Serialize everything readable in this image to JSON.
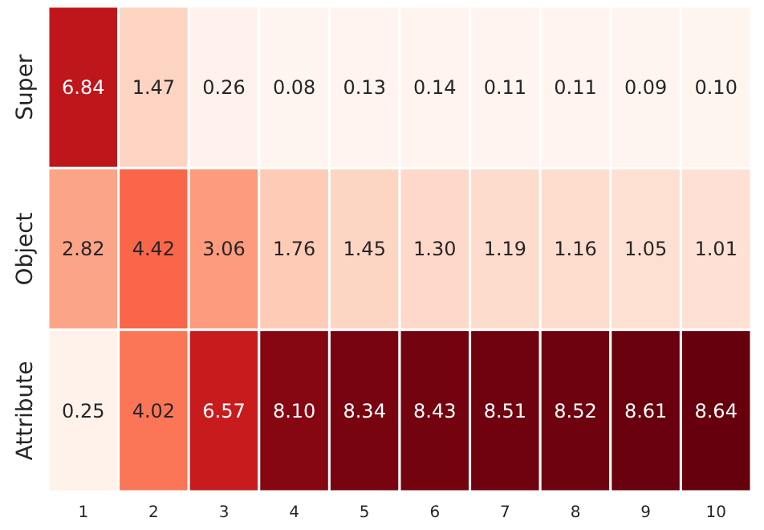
{
  "chart_data": {
    "type": "heatmap",
    "categories": [
      "1",
      "2",
      "3",
      "4",
      "5",
      "6",
      "7",
      "8",
      "9",
      "10"
    ],
    "y_categories": [
      "Super",
      "Object",
      "Attribute"
    ],
    "cells": [
      [
        6.84,
        1.47,
        0.26,
        0.08,
        0.13,
        0.14,
        0.11,
        0.11,
        0.09,
        0.1
      ],
      [
        2.82,
        4.42,
        3.06,
        1.76,
        1.45,
        1.3,
        1.19,
        1.16,
        1.05,
        1.01
      ],
      [
        0.25,
        4.02,
        6.57,
        8.1,
        8.34,
        8.43,
        8.51,
        8.52,
        8.61,
        8.64
      ]
    ],
    "cell_labels": [
      [
        "6.84",
        "1.47",
        "0.26",
        "0.08",
        "0.13",
        "0.14",
        "0.11",
        "0.11",
        "0.09",
        "0.10"
      ],
      [
        "2.82",
        "4.42",
        "3.06",
        "1.76",
        "1.45",
        "1.30",
        "1.19",
        "1.16",
        "1.05",
        "1.01"
      ],
      [
        "0.25",
        "4.02",
        "6.57",
        "8.10",
        "8.34",
        "8.43",
        "8.51",
        "8.52",
        "8.61",
        "8.64"
      ]
    ],
    "data_labels": true
  }
}
